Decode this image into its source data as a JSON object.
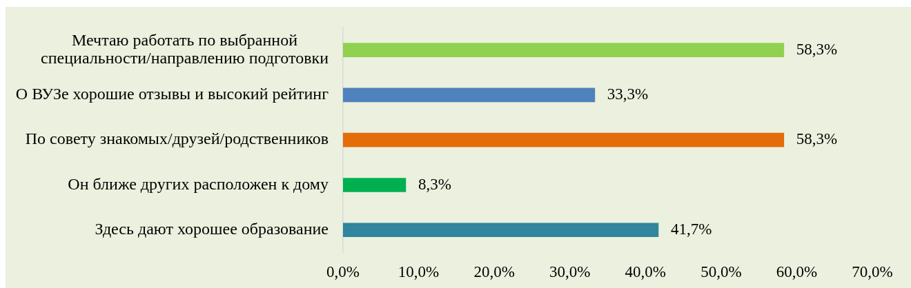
{
  "chart_data": {
    "type": "bar",
    "orientation": "horizontal",
    "categories": [
      "Мечтаю работать по выбранной специальности/направлению подготовки",
      "О ВУЗе хорошие отзывы и высокий рейтинг",
      "По совету знакомых/друзей/родственников",
      "Он ближе других расположен к дому",
      "Здесь дают хорошее образование"
    ],
    "values": [
      58.3,
      33.3,
      58.3,
      8.3,
      41.7
    ],
    "colors": [
      "#92d050",
      "#4f81bd",
      "#e46c0a",
      "#00b050",
      "#31859c"
    ],
    "value_labels": [
      "58,3%",
      "33,3%",
      "58,3%",
      "8,3%",
      "41,7%"
    ],
    "xlim": [
      0,
      70
    ],
    "xticks": [
      {
        "value": 0,
        "label": "0,0%"
      },
      {
        "value": 10,
        "label": "10,0%"
      },
      {
        "value": 20,
        "label": "20,0%"
      },
      {
        "value": 30,
        "label": "30,0%"
      },
      {
        "value": 40,
        "label": "40,0%"
      },
      {
        "value": 50,
        "label": "50,0%"
      },
      {
        "value": 60,
        "label": "60,0%"
      },
      {
        "value": 70,
        "label": "70,0%"
      }
    ],
    "grid": false,
    "legend": false
  }
}
